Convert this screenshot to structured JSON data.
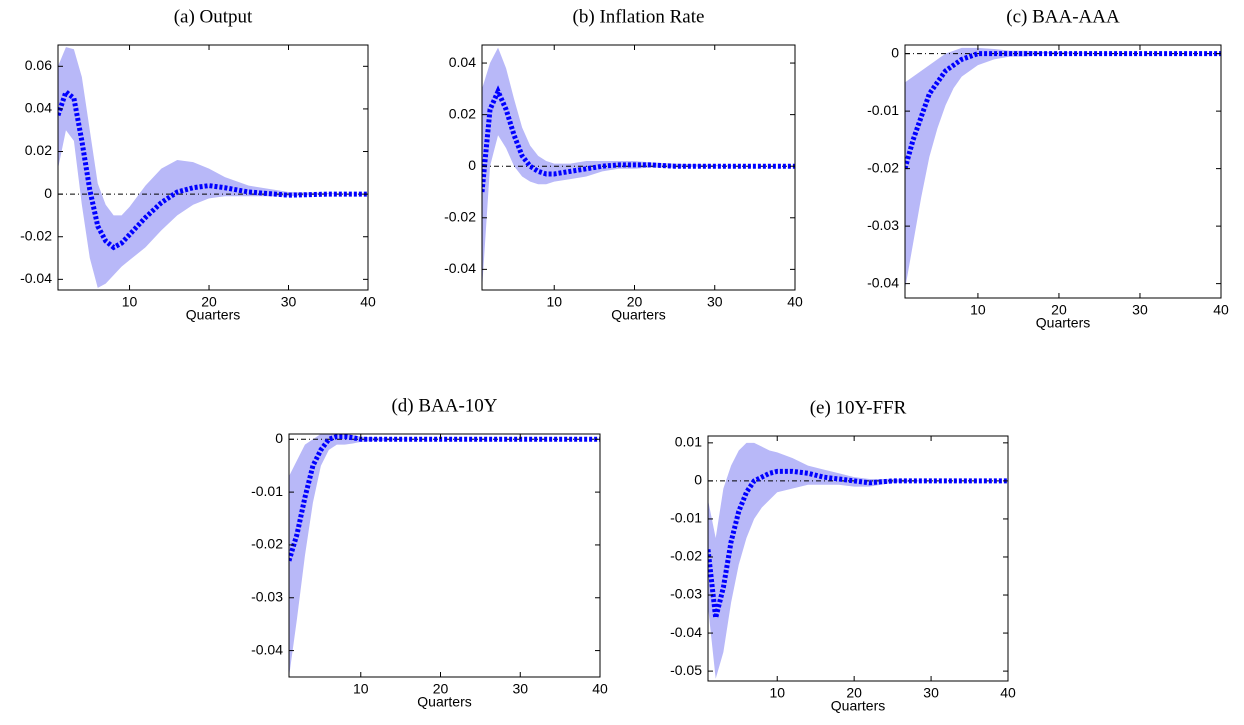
{
  "chart_data": [
    {
      "type": "line",
      "title": "(a) Output",
      "xlabel": "Quarters",
      "x": [
        1,
        2,
        3,
        4,
        5,
        6,
        7,
        8,
        9,
        10,
        12,
        14,
        16,
        18,
        20,
        22,
        25,
        30,
        35,
        40
      ],
      "values": [
        0.037,
        0.048,
        0.045,
        0.025,
        0.002,
        -0.015,
        -0.022,
        -0.025,
        -0.023,
        -0.019,
        -0.011,
        -0.004,
        0.001,
        0.003,
        0.004,
        0.003,
        0.001,
        -0.0005,
        0,
        0
      ],
      "lower": [
        0.012,
        0.03,
        0.025,
        -0.005,
        -0.03,
        -0.044,
        -0.042,
        -0.038,
        -0.034,
        -0.031,
        -0.025,
        -0.017,
        -0.01,
        -0.005,
        -0.002,
        -0.001,
        -0.001,
        -0.001,
        0,
        0
      ],
      "upper": [
        0.06,
        0.069,
        0.068,
        0.055,
        0.03,
        0.005,
        -0.005,
        -0.01,
        -0.01,
        -0.006,
        0.004,
        0.012,
        0.016,
        0.015,
        0.012,
        0.008,
        0.004,
        0.001,
        0.0005,
        0
      ],
      "color": "#0000ff",
      "band_color": "#b8b8f8",
      "reference_line": 0,
      "xlim": [
        1,
        40
      ],
      "xticks": [
        10,
        20,
        30,
        40
      ],
      "ylim": [
        -0.045,
        0.07
      ],
      "yticks": [
        -0.04,
        -0.02,
        0,
        0.02,
        0.04,
        0.06
      ]
    },
    {
      "type": "line",
      "title": "(b) Inflation Rate",
      "xlabel": "Quarters",
      "x": [
        1,
        2,
        3,
        4,
        5,
        6,
        7,
        8,
        9,
        10,
        12,
        14,
        16,
        18,
        20,
        22,
        25,
        30,
        35,
        40
      ],
      "values": [
        -0.01,
        0.022,
        0.029,
        0.022,
        0.012,
        0.004,
        0,
        -0.002,
        -0.003,
        -0.003,
        -0.002,
        -0.001,
        0,
        0.0005,
        0.0005,
        0.0005,
        0,
        0,
        0,
        0
      ],
      "lower": [
        -0.048,
        0,
        0.012,
        0.007,
        0,
        -0.004,
        -0.006,
        -0.007,
        -0.007,
        -0.006,
        -0.005,
        -0.004,
        -0.002,
        -0.001,
        -0.001,
        -0.0005,
        -0.0005,
        0,
        0,
        0
      ],
      "upper": [
        0.03,
        0.04,
        0.046,
        0.038,
        0.026,
        0.015,
        0.008,
        0.004,
        0.002,
        0.001,
        0.001,
        0.002,
        0.002,
        0.002,
        0.002,
        0.0015,
        0.001,
        0.0005,
        0,
        0
      ],
      "color": "#0000ff",
      "band_color": "#b8b8f8",
      "reference_line": 0,
      "xlim": [
        1,
        40
      ],
      "xticks": [
        10,
        20,
        30,
        40
      ],
      "ylim": [
        -0.048,
        0.047
      ],
      "yticks": [
        -0.04,
        -0.02,
        0,
        0.02,
        0.04
      ]
    },
    {
      "type": "line",
      "title": "(c) BAA-AAA",
      "xlabel": "Quarters",
      "x": [
        1,
        2,
        3,
        4,
        5,
        6,
        7,
        8,
        9,
        10,
        12,
        14,
        16,
        18,
        20,
        22,
        25,
        30,
        35,
        40
      ],
      "values": [
        -0.02,
        -0.015,
        -0.011,
        -0.007,
        -0.005,
        -0.003,
        -0.002,
        -0.001,
        -0.0005,
        0,
        0,
        0,
        0,
        0,
        0,
        0,
        0,
        0,
        0,
        0
      ],
      "lower": [
        -0.041,
        -0.033,
        -0.025,
        -0.018,
        -0.013,
        -0.009,
        -0.006,
        -0.004,
        -0.003,
        -0.002,
        -0.001,
        -0.0005,
        -0.0005,
        0,
        0,
        0,
        0,
        0,
        0,
        0
      ],
      "upper": [
        -0.005,
        -0.004,
        -0.003,
        -0.002,
        -0.001,
        0,
        0.0005,
        0.001,
        0.001,
        0.001,
        0.0008,
        0.0005,
        0.0005,
        0.0003,
        0.0003,
        0.0002,
        0.0001,
        0,
        0,
        0
      ],
      "color": "#0000ff",
      "band_color": "#b8b8f8",
      "reference_line": 0,
      "xlim": [
        1,
        40
      ],
      "xticks": [
        10,
        20,
        30,
        40
      ],
      "ylim": [
        -0.0425,
        0.0015
      ],
      "yticks": [
        -0.04,
        -0.03,
        -0.02,
        -0.01,
        0
      ]
    },
    {
      "type": "line",
      "title": "(d) BAA-10Y",
      "xlabel": "Quarters",
      "x": [
        1,
        2,
        3,
        4,
        5,
        6,
        7,
        8,
        9,
        10,
        12,
        14,
        16,
        18,
        20,
        22,
        25,
        30,
        35,
        40
      ],
      "values": [
        -0.023,
        -0.018,
        -0.011,
        -0.005,
        -0.002,
        0,
        0.0005,
        0.0005,
        0.0003,
        0,
        0,
        0,
        0,
        0,
        0,
        0,
        0,
        0,
        0,
        0
      ],
      "lower": [
        -0.045,
        -0.034,
        -0.022,
        -0.012,
        -0.005,
        -0.002,
        -0.001,
        -0.001,
        -0.0008,
        -0.0005,
        -0.0003,
        -0.0002,
        0,
        0,
        0,
        0,
        0,
        0,
        0,
        0
      ],
      "upper": [
        -0.007,
        -0.004,
        -0.001,
        0,
        0.001,
        0.001,
        0.001,
        0.001,
        0.0008,
        0.0005,
        0.0003,
        0.0002,
        0.0001,
        0,
        0,
        0,
        0,
        0,
        0,
        0
      ],
      "color": "#0000ff",
      "band_color": "#b8b8f8",
      "reference_line": 0,
      "xlim": [
        1,
        40
      ],
      "xticks": [
        10,
        20,
        30,
        40
      ],
      "ylim": [
        -0.045,
        0.001
      ],
      "yticks": [
        -0.04,
        -0.03,
        -0.02,
        -0.01,
        0
      ]
    },
    {
      "type": "line",
      "title": "(e) 10Y-FFR",
      "xlabel": "Quarters",
      "x": [
        1,
        2,
        3,
        4,
        5,
        6,
        7,
        8,
        9,
        10,
        12,
        14,
        16,
        18,
        20,
        22,
        25,
        30,
        35,
        40
      ],
      "values": [
        -0.018,
        -0.036,
        -0.028,
        -0.016,
        -0.008,
        -0.003,
        0,
        0.001,
        0.002,
        0.0025,
        0.0025,
        0.002,
        0.001,
        0.0005,
        0,
        -0.0005,
        0,
        0,
        0,
        0
      ],
      "lower": [
        -0.033,
        -0.052,
        -0.045,
        -0.032,
        -0.022,
        -0.015,
        -0.01,
        -0.007,
        -0.005,
        -0.003,
        -0.002,
        -0.001,
        -0.001,
        -0.001,
        -0.0015,
        -0.0015,
        -0.0005,
        0,
        0,
        0
      ],
      "upper": [
        -0.005,
        -0.015,
        -0.002,
        0.004,
        0.008,
        0.01,
        0.01,
        0.009,
        0.008,
        0.0075,
        0.006,
        0.004,
        0.003,
        0.002,
        0.001,
        0.0005,
        0.0005,
        0,
        0,
        0
      ],
      "color": "#0000ff",
      "band_color": "#b8b8f8",
      "reference_line": 0,
      "xlim": [
        1,
        40
      ],
      "xticks": [
        10,
        20,
        30,
        40
      ],
      "ylim": [
        -0.0526,
        0.0118
      ],
      "yticks": [
        -0.05,
        -0.04,
        -0.03,
        -0.02,
        -0.01,
        0,
        0.01
      ]
    }
  ]
}
